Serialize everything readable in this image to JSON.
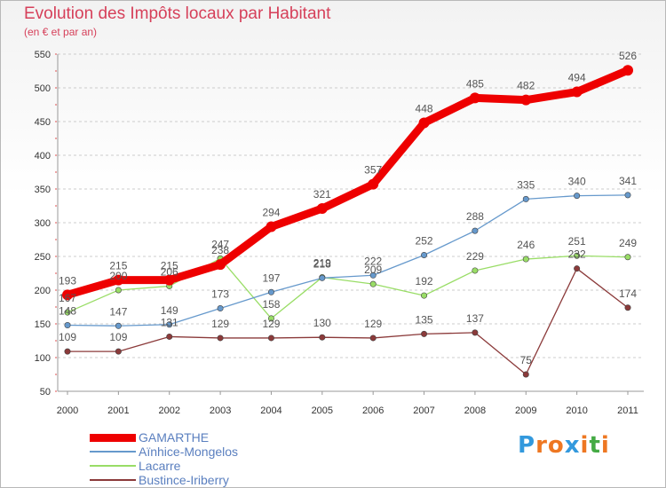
{
  "chart_data": {
    "type": "line",
    "title": "Evolution des Impôts locaux par Habitant",
    "subtitle": "(en € et par an)",
    "xlabel": "",
    "ylabel": "",
    "ylim": [
      50,
      550
    ],
    "yticks": [
      50,
      100,
      150,
      200,
      250,
      300,
      350,
      400,
      450,
      500,
      550
    ],
    "grid": "horizontal dashed",
    "x": [
      "2000",
      "2001",
      "2002",
      "2003",
      "2004",
      "2005",
      "2006",
      "2007",
      "2008",
      "2009",
      "2010",
      "2011"
    ],
    "series": [
      {
        "name": "GAMARTHE",
        "color": "#ee0000",
        "values": [
          193,
          215,
          215,
          238,
          294,
          321,
          357,
          448,
          485,
          482,
          494,
          526
        ]
      },
      {
        "name": "Aïnhice-Mongelos",
        "color": "#6699cc",
        "values": [
          148,
          147,
          149,
          173,
          197,
          218,
          222,
          252,
          288,
          335,
          340,
          341
        ]
      },
      {
        "name": "Lacarre",
        "color": "#99dd66",
        "values": [
          167,
          200,
          206,
          247,
          158,
          219,
          209,
          192,
          229,
          246,
          251,
          249
        ]
      },
      {
        "name": "Bustince-Iriberry",
        "color": "#8b3a3a",
        "values": [
          109,
          109,
          131,
          129,
          129,
          130,
          129,
          135,
          137,
          75,
          232,
          174
        ]
      }
    ],
    "legend_position": "bottom-left"
  },
  "brand": {
    "letters": [
      "P",
      "r",
      "o",
      "x",
      "i",
      "t",
      "i"
    ],
    "colors": [
      "#3399dd",
      "#ee7722",
      "#ee7722",
      "#3399dd",
      "#ee7722",
      "#44aa44",
      "#ee7722"
    ]
  }
}
